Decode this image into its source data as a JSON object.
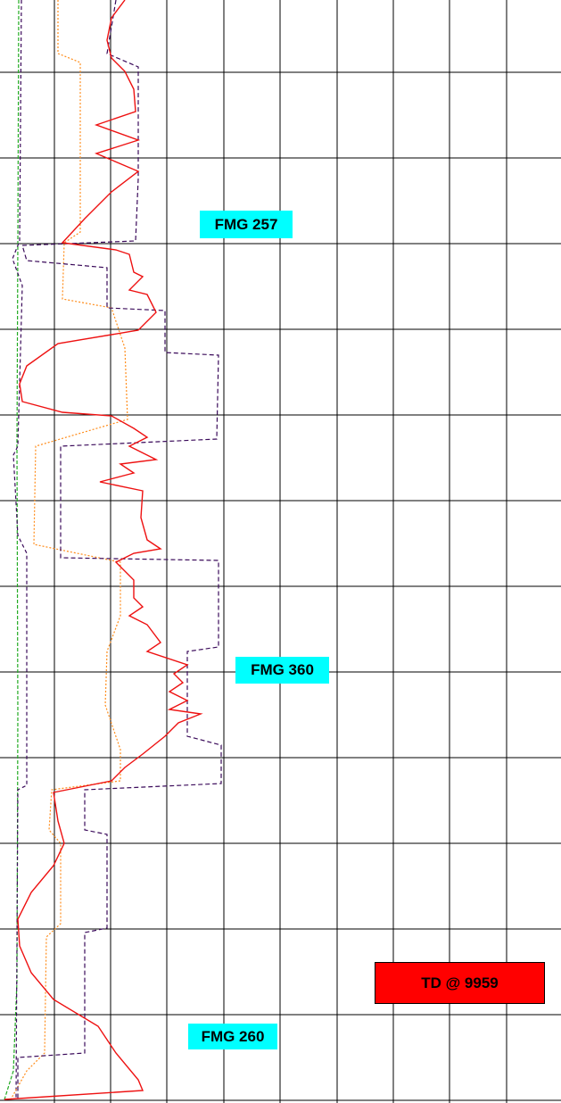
{
  "labels": {
    "fmg_257": "FMG 257",
    "fmg_360": "FMG 360",
    "fmg_260": "FMG 260",
    "td": "TD @ 9959"
  }
}
